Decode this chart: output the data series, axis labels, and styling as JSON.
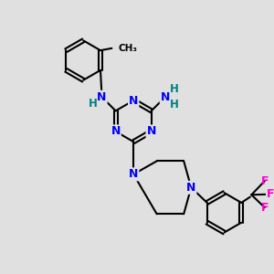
{
  "background_color": "#e0e0e0",
  "bond_color": "#000000",
  "nitrogen_color": "#0000ff",
  "fluorine_color": "#ff00cc",
  "hydrogen_color": "#008080",
  "figsize": [
    3.0,
    3.0
  ],
  "dpi": 100,
  "xlim": [
    0,
    10
  ],
  "ylim": [
    0,
    10
  ]
}
